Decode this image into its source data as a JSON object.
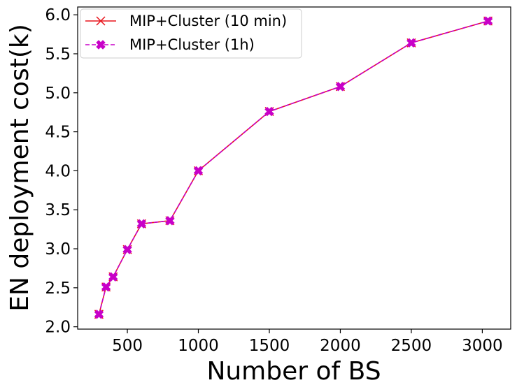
{
  "chart_data": {
    "type": "line",
    "xlabel": "Number of BS",
    "ylabel": "EN deployment cost(k)",
    "xlim": [
      150,
      3200
    ],
    "ylim": [
      1.97,
      6.1
    ],
    "xticks": [
      500,
      1000,
      1500,
      2000,
      2500,
      3000
    ],
    "yticks": [
      2.0,
      2.5,
      3.0,
      3.5,
      4.0,
      4.5,
      5.0,
      5.5,
      6.0
    ],
    "xtick_labels": [
      "500",
      "1000",
      "1500",
      "2000",
      "2500",
      "3000"
    ],
    "ytick_labels": [
      "2.0",
      "2.5",
      "3.0",
      "3.5",
      "4.0",
      "4.5",
      "5.0",
      "5.5",
      "6.0"
    ],
    "grid": false,
    "legend_position": "top-left",
    "x": [
      300,
      350,
      400,
      500,
      600,
      800,
      1000,
      1500,
      2000,
      2500,
      3040
    ],
    "series": [
      {
        "name": "MIP+Cluster (10 min)",
        "color": "#e8141c",
        "line_style": "solid",
        "marker": "x",
        "values": [
          2.16,
          2.51,
          2.64,
          2.99,
          3.32,
          3.36,
          4.0,
          4.76,
          5.08,
          5.64,
          5.92
        ]
      },
      {
        "name": "MIP+Cluster (1h)",
        "color": "#c800c8",
        "line_style": "dashed",
        "marker": "X",
        "values": [
          2.16,
          2.51,
          2.64,
          2.99,
          3.32,
          3.36,
          4.0,
          4.76,
          5.08,
          5.64,
          5.92
        ]
      }
    ]
  }
}
